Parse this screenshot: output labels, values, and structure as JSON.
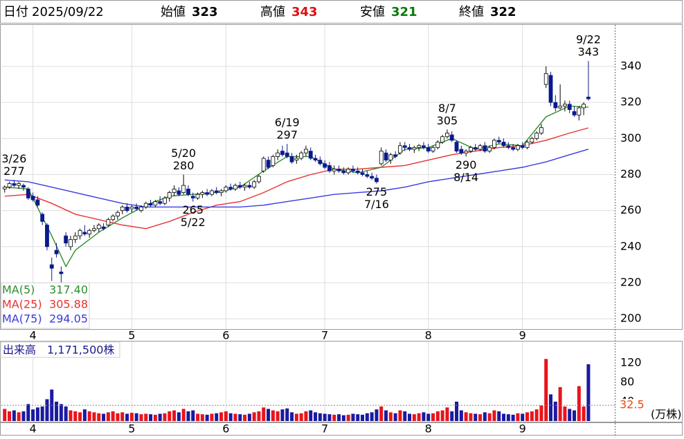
{
  "header": {
    "date_label": "日付",
    "date": "2025/09/22",
    "items": [
      {
        "label": "始値",
        "value": 323,
        "color": "#000000"
      },
      {
        "label": "高値",
        "value": 343,
        "color": "#e01010"
      },
      {
        "label": "安値",
        "value": 321,
        "color": "#0a7a0a"
      },
      {
        "label": "終値",
        "value": 322,
        "color": "#000000"
      }
    ]
  },
  "chart_data": [
    {
      "type": "candlestick",
      "up_color": "#ffffff",
      "down_color": "#0a1a8c",
      "grid": true,
      "ylim": [
        194.3,
        363
      ],
      "yticks": [
        200,
        220,
        240,
        260,
        280,
        300,
        320,
        340
      ],
      "xlim": [
        -0.7,
        129.6
      ],
      "xticks": [
        {
          "value": 6,
          "label": "4"
        },
        {
          "value": 27,
          "label": "5"
        },
        {
          "value": 47,
          "label": "6"
        },
        {
          "value": 68,
          "label": "7"
        },
        {
          "value": 90,
          "label": "8"
        },
        {
          "value": 110,
          "label": "9"
        }
      ],
      "ohlc": [
        [
          272,
          274,
          270,
          273
        ],
        [
          273,
          276,
          272,
          275
        ],
        [
          275,
          277,
          273,
          274
        ],
        [
          274,
          276,
          272,
          275
        ],
        [
          274,
          275,
          271,
          273
        ],
        [
          272,
          273,
          266,
          267
        ],
        [
          268,
          270,
          265,
          266
        ],
        [
          266,
          268,
          262,
          263
        ],
        [
          258,
          259,
          252,
          254
        ],
        [
          252,
          253,
          238,
          240
        ],
        [
          230,
          234,
          221,
          228
        ],
        [
          238,
          242,
          234,
          236
        ],
        [
          226,
          229,
          220,
          225
        ],
        [
          246,
          248,
          240,
          242
        ],
        [
          240,
          246,
          238,
          244
        ],
        [
          244,
          248,
          242,
          246
        ],
        [
          246,
          250,
          244,
          249
        ],
        [
          248,
          252,
          246,
          247
        ],
        [
          247,
          250,
          245,
          249
        ],
        [
          249,
          252,
          248,
          250
        ],
        [
          250,
          253,
          248,
          252
        ],
        [
          251,
          253,
          249,
          250
        ],
        [
          252,
          256,
          251,
          255
        ],
        [
          255,
          258,
          254,
          257
        ],
        [
          257,
          260,
          255,
          259
        ],
        [
          260,
          263,
          258,
          262
        ],
        [
          262,
          264,
          259,
          260
        ],
        [
          261,
          263,
          259,
          262
        ],
        [
          262,
          264,
          260,
          261
        ],
        [
          260,
          263,
          259,
          262
        ],
        [
          262,
          265,
          261,
          264
        ],
        [
          264,
          266,
          262,
          263
        ],
        [
          263,
          266,
          262,
          265
        ],
        [
          265,
          268,
          263,
          264
        ],
        [
          264,
          268,
          263,
          267
        ],
        [
          267,
          271,
          265,
          270
        ],
        [
          270,
          274,
          268,
          272
        ],
        [
          271,
          273,
          268,
          269
        ],
        [
          270,
          280,
          269,
          274
        ],
        [
          272,
          274,
          268,
          269
        ],
        [
          268,
          270,
          265,
          267
        ],
        [
          267,
          270,
          266,
          269
        ],
        [
          269,
          271,
          267,
          270
        ],
        [
          270,
          272,
          268,
          269
        ],
        [
          269,
          272,
          268,
          271
        ],
        [
          271,
          273,
          269,
          270
        ],
        [
          270,
          272,
          268,
          271
        ],
        [
          271,
          274,
          270,
          273
        ],
        [
          273,
          275,
          271,
          272
        ],
        [
          272,
          275,
          271,
          274
        ],
        [
          274,
          276,
          272,
          273
        ],
        [
          273,
          275,
          271,
          274
        ],
        [
          274,
          276,
          272,
          273
        ],
        [
          273,
          277,
          272,
          276
        ],
        [
          276,
          280,
          275,
          279
        ],
        [
          282,
          290,
          281,
          289
        ],
        [
          288,
          290,
          283,
          284
        ],
        [
          285,
          291,
          284,
          290
        ],
        [
          290,
          294,
          288,
          292
        ],
        [
          293,
          296,
          290,
          291
        ],
        [
          292,
          297,
          289,
          290
        ],
        [
          290,
          292,
          286,
          287
        ],
        [
          288,
          291,
          286,
          289
        ],
        [
          289,
          293,
          288,
          292
        ],
        [
          292,
          296,
          290,
          294
        ],
        [
          293,
          295,
          288,
          289
        ],
        [
          289,
          291,
          287,
          288
        ],
        [
          288,
          290,
          285,
          286
        ],
        [
          286,
          288,
          283,
          284
        ],
        [
          285,
          287,
          281,
          282
        ],
        [
          282,
          285,
          280,
          283
        ],
        [
          283,
          285,
          281,
          282
        ],
        [
          282,
          284,
          280,
          281
        ],
        [
          281,
          284,
          280,
          283
        ],
        [
          283,
          285,
          281,
          282
        ],
        [
          282,
          284,
          280,
          281
        ],
        [
          281,
          283,
          279,
          280
        ],
        [
          280,
          282,
          278,
          279
        ],
        [
          279,
          281,
          277,
          278
        ],
        [
          278,
          280,
          275,
          276
        ],
        [
          286,
          295,
          285,
          293
        ],
        [
          292,
          294,
          287,
          288
        ],
        [
          288,
          292,
          286,
          291
        ],
        [
          291,
          293,
          289,
          290
        ],
        [
          292,
          298,
          291,
          296
        ],
        [
          296,
          298,
          293,
          295
        ],
        [
          295,
          297,
          293,
          294
        ],
        [
          294,
          296,
          292,
          295
        ],
        [
          295,
          297,
          293,
          296
        ],
        [
          296,
          298,
          294,
          295
        ],
        [
          295,
          297,
          292,
          293
        ],
        [
          293,
          296,
          292,
          295
        ],
        [
          295,
          299,
          294,
          298
        ],
        [
          298,
          302,
          297,
          301
        ],
        [
          301,
          305,
          300,
          303
        ],
        [
          302,
          304,
          298,
          299
        ],
        [
          298,
          299,
          292,
          293
        ],
        [
          294,
          296,
          291,
          292
        ],
        [
          292,
          294,
          290,
          293
        ],
        [
          293,
          296,
          292,
          295
        ],
        [
          295,
          297,
          293,
          294
        ],
        [
          294,
          297,
          293,
          296
        ],
        [
          296,
          298,
          292,
          293
        ],
        [
          293,
          296,
          292,
          295
        ],
        [
          295,
          300,
          294,
          299
        ],
        [
          299,
          301,
          297,
          298
        ],
        [
          298,
          300,
          295,
          296
        ],
        [
          296,
          298,
          294,
          295
        ],
        [
          295,
          297,
          293,
          294
        ],
        [
          294,
          297,
          293,
          296
        ],
        [
          296,
          298,
          294,
          295
        ],
        [
          295,
          299,
          294,
          298
        ],
        [
          298,
          301,
          297,
          300
        ],
        [
          300,
          304,
          299,
          303
        ],
        [
          303,
          308,
          302,
          306
        ],
        [
          330,
          340,
          328,
          336
        ],
        [
          335,
          337,
          318,
          320
        ],
        [
          320,
          324,
          315,
          317
        ],
        [
          317,
          330,
          316,
          318
        ],
        [
          318,
          321,
          315,
          319
        ],
        [
          319,
          321,
          314,
          316
        ],
        [
          315,
          318,
          312,
          313
        ],
        [
          313,
          318,
          310,
          317
        ],
        [
          317,
          320,
          313,
          319
        ],
        [
          323,
          343,
          321,
          322
        ]
      ],
      "ma": [
        {
          "name": "MA(5)",
          "color": "#2e8b2e",
          "legend_value": "317.40",
          "x": [
            0,
            5,
            10,
            13,
            15,
            20,
            25,
            30,
            35,
            40,
            45,
            50,
            55,
            60,
            65,
            70,
            75,
            80,
            85,
            90,
            95,
            100,
            105,
            110,
            115,
            120,
            124
          ],
          "values": [
            273,
            272,
            246,
            229,
            238,
            248,
            256,
            263,
            268,
            269,
            270,
            273,
            282,
            290,
            290,
            283,
            281,
            284,
            294,
            295,
            300,
            294,
            297,
            296,
            312,
            318,
            317.4
          ]
        },
        {
          "name": "MA(25)",
          "color": "#e83030",
          "legend_value": "305.88",
          "x": [
            0,
            5,
            10,
            15,
            20,
            25,
            30,
            35,
            40,
            45,
            50,
            55,
            60,
            65,
            70,
            75,
            80,
            85,
            90,
            95,
            100,
            105,
            110,
            115,
            120,
            124
          ],
          "values": [
            268,
            269,
            264,
            258,
            255,
            252,
            250,
            254,
            259,
            263,
            265,
            270,
            276,
            280,
            283,
            283,
            284,
            285,
            288,
            291,
            293,
            295,
            296,
            299,
            303,
            305.88
          ]
        },
        {
          "name": "MA(75)",
          "color": "#3a3ae0",
          "legend_value": "294.05",
          "x": [
            0,
            5,
            10,
            15,
            20,
            25,
            30,
            35,
            40,
            45,
            50,
            55,
            60,
            65,
            70,
            75,
            80,
            85,
            90,
            95,
            100,
            105,
            110,
            115,
            120,
            124
          ],
          "values": [
            277,
            276,
            273,
            270,
            267,
            264,
            262,
            262,
            262,
            262,
            262,
            263,
            265,
            267,
            269,
            270,
            271,
            273,
            276,
            278,
            280,
            282,
            284,
            287,
            291,
            294.05
          ]
        }
      ],
      "annotations": [
        {
          "date": "3/26",
          "value": 277,
          "index": 2,
          "position": "above"
        },
        {
          "date": "5/20",
          "value": 280,
          "index": 38,
          "position": "above"
        },
        {
          "date": "5/22",
          "value": 265,
          "index": 40,
          "position": "below"
        },
        {
          "date": "6/19",
          "value": 297,
          "index": 60,
          "position": "above"
        },
        {
          "date": "7/16",
          "value": 275,
          "index": 79,
          "position": "below"
        },
        {
          "date": "8/7",
          "value": 305,
          "index": 94,
          "position": "above"
        },
        {
          "date": "8/14",
          "value": 290,
          "index": 98,
          "position": "below"
        },
        {
          "date": "9/22",
          "value": 343,
          "index": 124,
          "position": "above"
        }
      ]
    },
    {
      "type": "bar",
      "title": "出来高",
      "value_text": "1,171,500株",
      "unit": "(万株)",
      "ylim": [
        0,
        164
      ],
      "yticks": [
        40,
        80,
        120
      ],
      "average": 32.5,
      "up_color": "#e8141c",
      "down_color": "#1a1aa0",
      "flat_color": "#9a9a9a",
      "values": [
        25,
        20,
        22,
        18,
        20,
        35,
        24,
        28,
        30,
        45,
        65,
        40,
        35,
        30,
        22,
        20,
        18,
        24,
        20,
        18,
        16,
        15,
        18,
        20,
        16,
        18,
        15,
        17,
        16,
        14,
        15,
        14,
        13,
        15,
        16,
        20,
        22,
        18,
        25,
        20,
        22,
        15,
        14,
        13,
        15,
        16,
        18,
        20,
        16,
        15,
        14,
        13,
        15,
        18,
        20,
        28,
        25,
        22,
        20,
        24,
        26,
        18,
        15,
        16,
        20,
        22,
        18,
        16,
        15,
        14,
        13,
        14,
        12,
        13,
        15,
        14,
        13,
        16,
        18,
        24,
        30,
        22,
        18,
        16,
        22,
        20,
        15,
        14,
        16,
        18,
        15,
        16,
        20,
        22,
        28,
        20,
        40,
        22,
        18,
        16,
        15,
        14,
        18,
        16,
        22,
        20,
        15,
        14,
        13,
        16,
        15,
        18,
        20,
        24,
        32,
        128,
        55,
        40,
        70,
        30,
        25,
        22,
        72,
        30,
        117.15
      ]
    }
  ]
}
